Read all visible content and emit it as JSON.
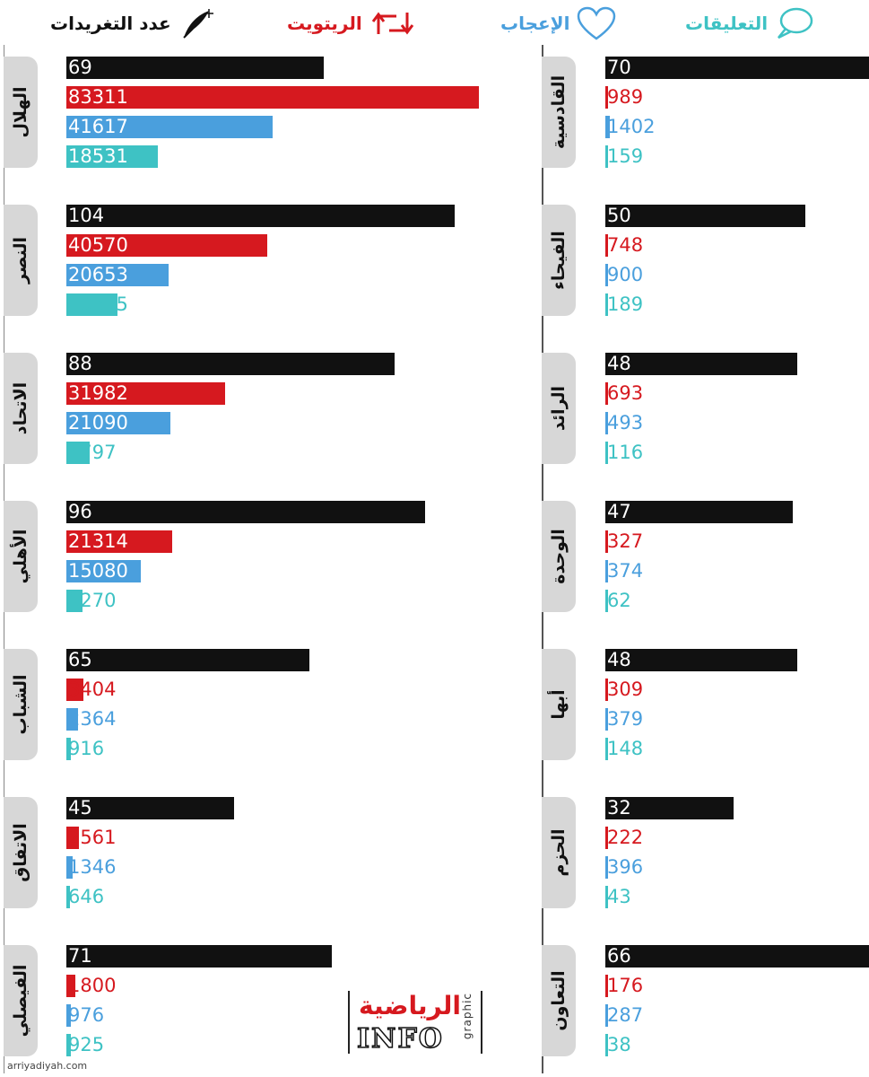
{
  "legend": {
    "tweets": {
      "label": "عدد التغريدات",
      "icon": "quill-icon",
      "color": "#111111"
    },
    "retweets": {
      "label": "الريتويت",
      "icon": "retweet-icon",
      "color": "#d6191f"
    },
    "likes": {
      "label": "الإعجاب",
      "icon": "heart-icon",
      "color": "#4a9fdd"
    },
    "comments": {
      "label": "التعليقات",
      "icon": "speech-bubble-icon",
      "color": "#3ec2c4"
    }
  },
  "chart_data": {
    "type": "bar",
    "orientation": "horizontal",
    "metrics": [
      "tweets",
      "retweets",
      "likes",
      "comments"
    ],
    "colors": {
      "tweets": "#111111",
      "retweets": "#d6191f",
      "likes": "#4a9fdd",
      "comments": "#3ec2c4"
    },
    "clubs": [
      {
        "name": "الهلال",
        "column": "left",
        "tweets": 69,
        "retweets": 83311,
        "likes": 41617,
        "comments": 18531
      },
      {
        "name": "النصر",
        "column": "left",
        "tweets": 104,
        "retweets": 40570,
        "likes": 20653,
        "comments": 10335
      },
      {
        "name": "الاتحاد",
        "column": "left",
        "tweets": 88,
        "retweets": 31982,
        "likes": 21090,
        "comments": 4797
      },
      {
        "name": "الأهلي",
        "column": "left",
        "tweets": 96,
        "retweets": 21314,
        "likes": 15080,
        "comments": 3270
      },
      {
        "name": "الشباب",
        "column": "left",
        "tweets": 65,
        "retweets": 3404,
        "likes": 2364,
        "comments": 916
      },
      {
        "name": "الاتفاق",
        "column": "left",
        "tweets": 45,
        "retweets": 2561,
        "likes": 1346,
        "comments": 646
      },
      {
        "name": "الفيصلي",
        "column": "left",
        "tweets": 71,
        "retweets": 1800,
        "likes": 976,
        "comments": 925
      },
      {
        "name": "القادسية",
        "column": "right",
        "tweets": 70,
        "retweets": 989,
        "likes": 1402,
        "comments": 159
      },
      {
        "name": "الفيحاء",
        "column": "right",
        "tweets": 50,
        "retweets": 748,
        "likes": 900,
        "comments": 189
      },
      {
        "name": "الرائد",
        "column": "right",
        "tweets": 48,
        "retweets": 693,
        "likes": 493,
        "comments": 116
      },
      {
        "name": "الوحدة",
        "column": "right",
        "tweets": 47,
        "retweets": 327,
        "likes": 374,
        "comments": 62
      },
      {
        "name": "أبها",
        "column": "right",
        "tweets": 48,
        "retweets": 309,
        "likes": 379,
        "comments": 148
      },
      {
        "name": "الحزم",
        "column": "right",
        "tweets": 32,
        "retweets": 222,
        "likes": 396,
        "comments": 43
      },
      {
        "name": "التعاون",
        "column": "right",
        "tweets": 66,
        "retweets": 176,
        "likes": 287,
        "comments": 38
      }
    ]
  },
  "logo": {
    "arabic": "الرياضية",
    "info": "INFO",
    "graphic": "graphic"
  },
  "footer": {
    "source": "arriyadiyah.com"
  }
}
